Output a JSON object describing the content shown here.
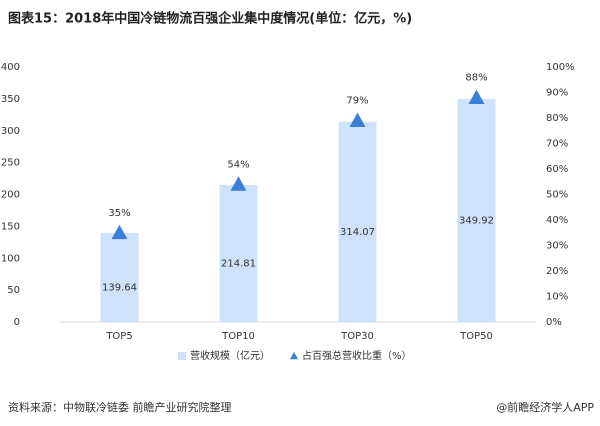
{
  "chart_data": {
    "type": "bar-line",
    "title": "图表15：2018年中国冷链物流百强企业集中度情况(单位：亿元，%)",
    "categories": [
      "TOP5",
      "TOP10",
      "TOP30",
      "TOP50"
    ],
    "series": [
      {
        "name": "营收规模（亿元）",
        "color": "#cfe2fb",
        "values": [
          139.64,
          214.81,
          314.07,
          349.92
        ]
      },
      {
        "name": "占百强总营收比重（%）",
        "color": "#3b7fd6",
        "axis": "y2",
        "values": [
          35,
          54,
          79,
          88
        ],
        "value_labels": [
          "35%",
          "54%",
          "79%",
          "88%"
        ]
      }
    ],
    "ylim": [
      0,
      400
    ],
    "yticks": [
      0,
      50,
      100,
      150,
      200,
      250,
      300,
      350,
      400
    ],
    "y2lim": [
      0,
      100
    ],
    "y2ticks": [
      {
        "value": 0,
        "label": "0%"
      },
      {
        "value": 10,
        "label": "10%"
      },
      {
        "value": 20,
        "label": "20%"
      },
      {
        "value": 30,
        "label": "30%"
      },
      {
        "value": 40,
        "label": "40%"
      },
      {
        "value": 50,
        "label": "50%"
      },
      {
        "value": 60,
        "label": "60%"
      },
      {
        "value": 70,
        "label": "70%"
      },
      {
        "value": 80,
        "label": "80%"
      },
      {
        "value": 90,
        "label": "90%"
      },
      {
        "value": 100,
        "label": "100%"
      }
    ],
    "source": "资料来源：中物联冷链委 前瞻产业研究院整理",
    "credit": "@前瞻经济学人APP"
  }
}
